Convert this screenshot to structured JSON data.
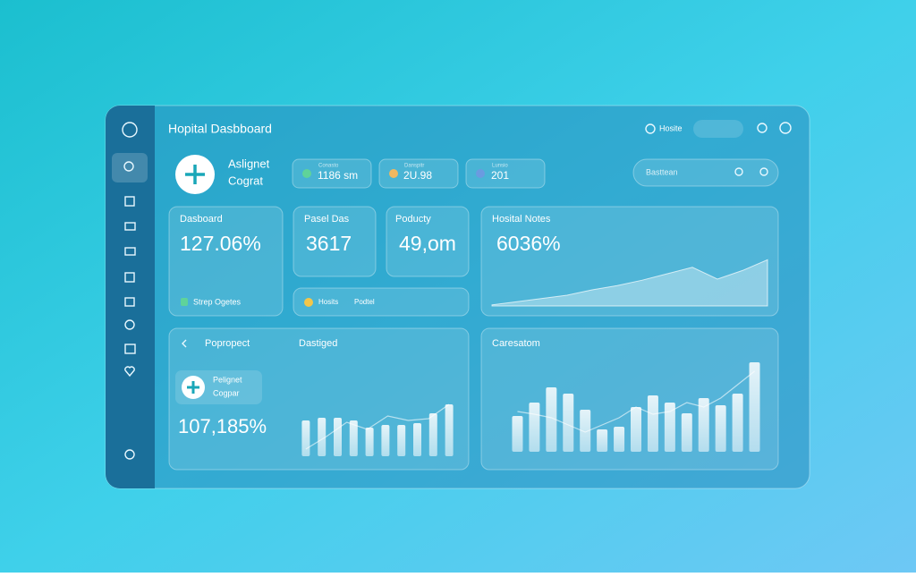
{
  "header": {
    "title": "Hopital Dasbboard",
    "link": "Hosite"
  },
  "profile": {
    "name": "Aslignet",
    "role": "Cograt"
  },
  "stats": [
    {
      "label": "Conasto",
      "value": "1186 sm"
    },
    {
      "label": "Danspitr",
      "value": "2U.98"
    },
    {
      "label": "Lunsio",
      "value": "201"
    }
  ],
  "search": {
    "placeholder": "Basttean"
  },
  "cards": [
    {
      "title": "Dasboard",
      "value": "127.06%",
      "footer": "Strep Ogetes"
    },
    {
      "title": "Pasel Das",
      "value": "3617"
    },
    {
      "title": "Poducty",
      "value": "49,om"
    },
    {
      "title": "Hosital Notes",
      "value": "6036%"
    }
  ],
  "strip": {
    "left": "Hosits",
    "right": "Podtel"
  },
  "prospect": {
    "title": "Popropect",
    "menu": "Dastiged",
    "name": "Pelignet",
    "role": "Cogpar",
    "value": "107,185%"
  },
  "care": {
    "title": "Caresatom"
  },
  "charts": {
    "notes": {
      "type": "area",
      "ylim": [
        0,
        100
      ],
      "values": [
        2,
        8,
        14,
        20,
        30,
        38,
        48,
        60,
        72,
        50,
        66,
        86
      ]
    },
    "prospect": {
      "type": "bar-line",
      "ylim": [
        0,
        100
      ],
      "bars": [
        40,
        43,
        43,
        40,
        32,
        35,
        35,
        37,
        48,
        58
      ],
      "line": [
        48,
        62,
        78,
        70,
        85,
        80,
        82,
        98
      ]
    },
    "care": {
      "type": "bar-line",
      "ylim": [
        0,
        100
      ],
      "bars": [
        40,
        55,
        72,
        65,
        47,
        25,
        28,
        50,
        63,
        55,
        43,
        60,
        52,
        65,
        100
      ],
      "line": [
        45,
        42,
        38,
        30,
        22,
        30,
        38,
        50,
        42,
        45,
        55,
        50,
        60,
        75,
        90
      ]
    }
  }
}
